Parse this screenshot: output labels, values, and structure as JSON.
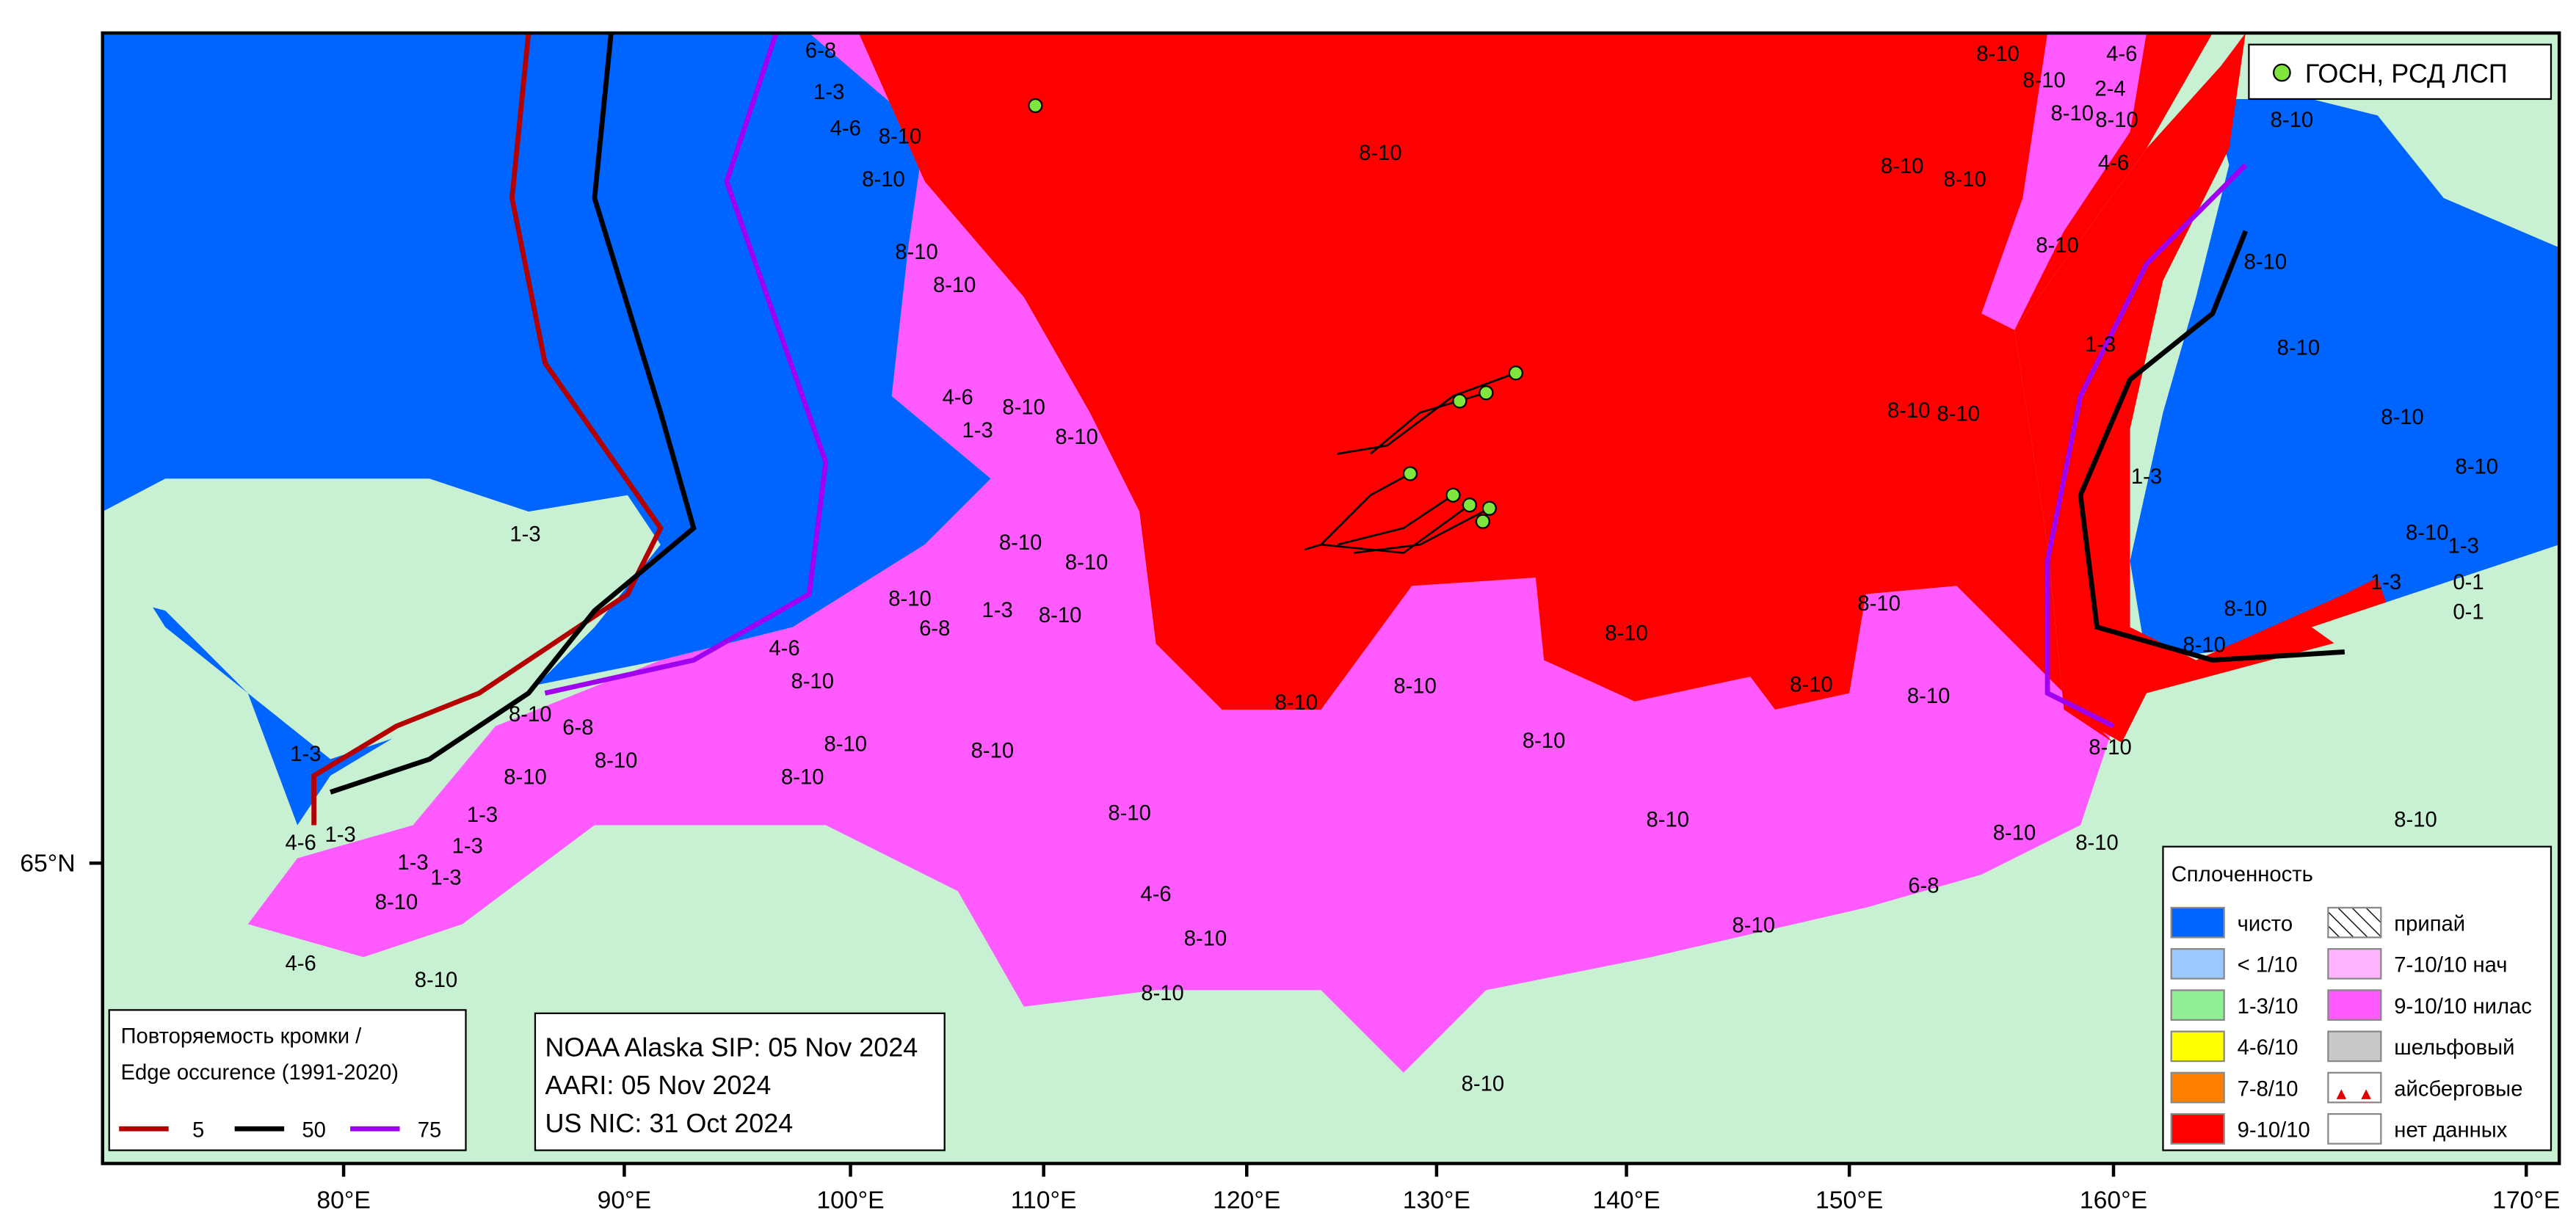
{
  "top_legend": {
    "label": "ГОСН, РСД ЛСП"
  },
  "longitude_labels": [
    "80°E",
    "90°E",
    "100°E",
    "110°E",
    "120°E",
    "130°E",
    "140°E",
    "150°E",
    "160°E",
    "170°E"
  ],
  "latitude_labels": [
    "65°N"
  ],
  "info_box": [
    "NOAA Alaska SIP: 05 Nov 2024",
    "AARI: 05 Nov 2024",
    "US NIC: 31 Oct 2024"
  ],
  "edge_legend": {
    "title": [
      "Повторяемость кромки /",
      "Edge occurence (1991-2020)"
    ],
    "items": [
      {
        "label": "5",
        "color": "#b40000"
      },
      {
        "label": "50",
        "color": "#000000"
      },
      {
        "label": "75",
        "color": "#a000f0"
      }
    ]
  },
  "concentration_legend": {
    "title": "Сплоченность",
    "items": [
      {
        "label": "чисто",
        "color": "#0064ff"
      },
      {
        "label": "< 1/10",
        "color": "#9cc8ff"
      },
      {
        "label": "1-3/10",
        "color": "#90f096"
      },
      {
        "label": "4-6/10",
        "color": "#ffff00"
      },
      {
        "label": "7-8/10",
        "color": "#ff8000"
      },
      {
        "label": "9-10/10",
        "color": "#ff0000"
      },
      {
        "label": "припай",
        "color": "hatch"
      },
      {
        "label": "7-10/10 нач",
        "color": "#ffb4ff"
      },
      {
        "label": "9-10/10 нилас",
        "color": "#ff5aff"
      },
      {
        "label": "шельфовый",
        "color": "#c8c8c8"
      },
      {
        "label": "айсберговые",
        "color": "iceberg"
      },
      {
        "label": "нет данных",
        "color": "#ffffff"
      }
    ]
  },
  "ice_labels": [
    "6-8",
    "1-3",
    "4-6",
    "8-10",
    "8-10",
    "8-10",
    "8-10",
    "4-6",
    "8-10",
    "1-3",
    "8-10",
    "8-10",
    "8-10",
    "8-10",
    "4-6",
    "2-4",
    "8-10",
    "8-10",
    "8-10",
    "8-10",
    "4-6",
    "8-10",
    "8-10",
    "8-10",
    "1-3",
    "1-3",
    "8-10",
    "8-10",
    "8-10",
    "8-10",
    "8-10",
    "8-10",
    "1-3",
    "1-3",
    "8-10",
    "8-10",
    "8-10",
    "8-10",
    "8-10",
    "8-10",
    "8-10",
    "1-3",
    "8-10",
    "8-10",
    "8-10",
    "6-8",
    "1-3",
    "8-10",
    "8-10",
    "4-6",
    "8-10",
    "6-8",
    "8-10",
    "8-10",
    "8-10",
    "8-10",
    "8-10",
    "8-10",
    "8-10",
    "6-8",
    "8-10",
    "8-10",
    "8-10",
    "1-3",
    "1-3",
    "1-3",
    "1-3",
    "1-3",
    "8-10",
    "4-6",
    "8-10",
    "4-6",
    "1-3",
    "8-10",
    "8-10",
    "8-10",
    "8-10",
    "0-1",
    "0-1",
    "4-6",
    "8-10",
    "8-10",
    "8-10"
  ]
}
